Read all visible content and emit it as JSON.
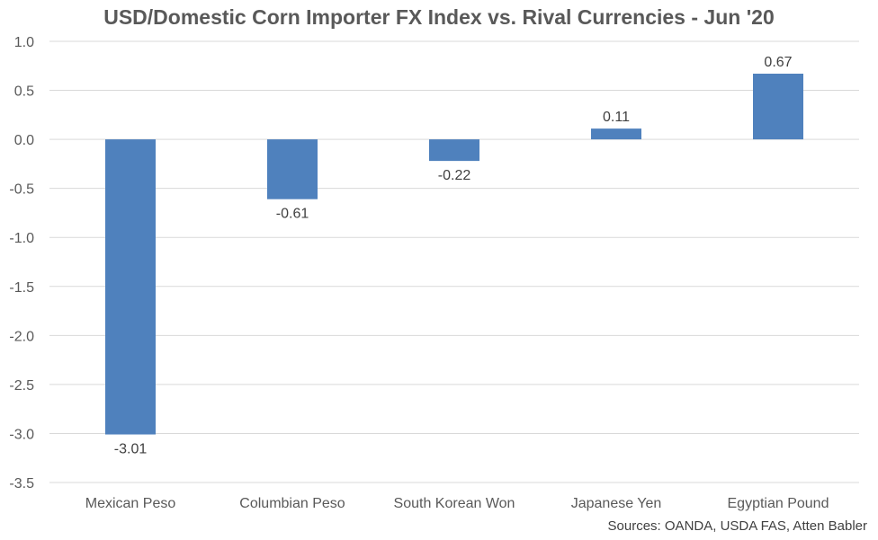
{
  "chart_data": {
    "type": "bar",
    "title": "USD/Domestic Corn Importer FX Index vs. Rival Currencies - Jun '20",
    "source": "Sources: OANDA, USDA FAS, Atten Babler",
    "categories": [
      "Mexican Peso",
      "Columbian Peso",
      "South Korean Won",
      "Japanese Yen",
      "Egyptian Pound"
    ],
    "values": [
      -3.01,
      -0.61,
      -0.22,
      0.11,
      0.67
    ],
    "data_labels": [
      "-3.01",
      "-0.61",
      "-0.22",
      "0.11",
      "0.67"
    ],
    "ylim": [
      -3.5,
      1.0
    ],
    "yticks": [
      1.0,
      0.5,
      0.0,
      -0.5,
      -1.0,
      -1.5,
      -2.0,
      -2.5,
      -3.0,
      -3.5
    ],
    "ytick_labels": [
      "1.0",
      "0.5",
      "0.0",
      "-0.5",
      "-1.0",
      "-1.5",
      "-2.0",
      "-2.5",
      "-3.0",
      "-3.5"
    ],
    "xlabel": "",
    "ylabel": "",
    "grid": true,
    "legend": "none",
    "bar_color": "#4f81bd",
    "grid_color": "#d9d9d9"
  }
}
